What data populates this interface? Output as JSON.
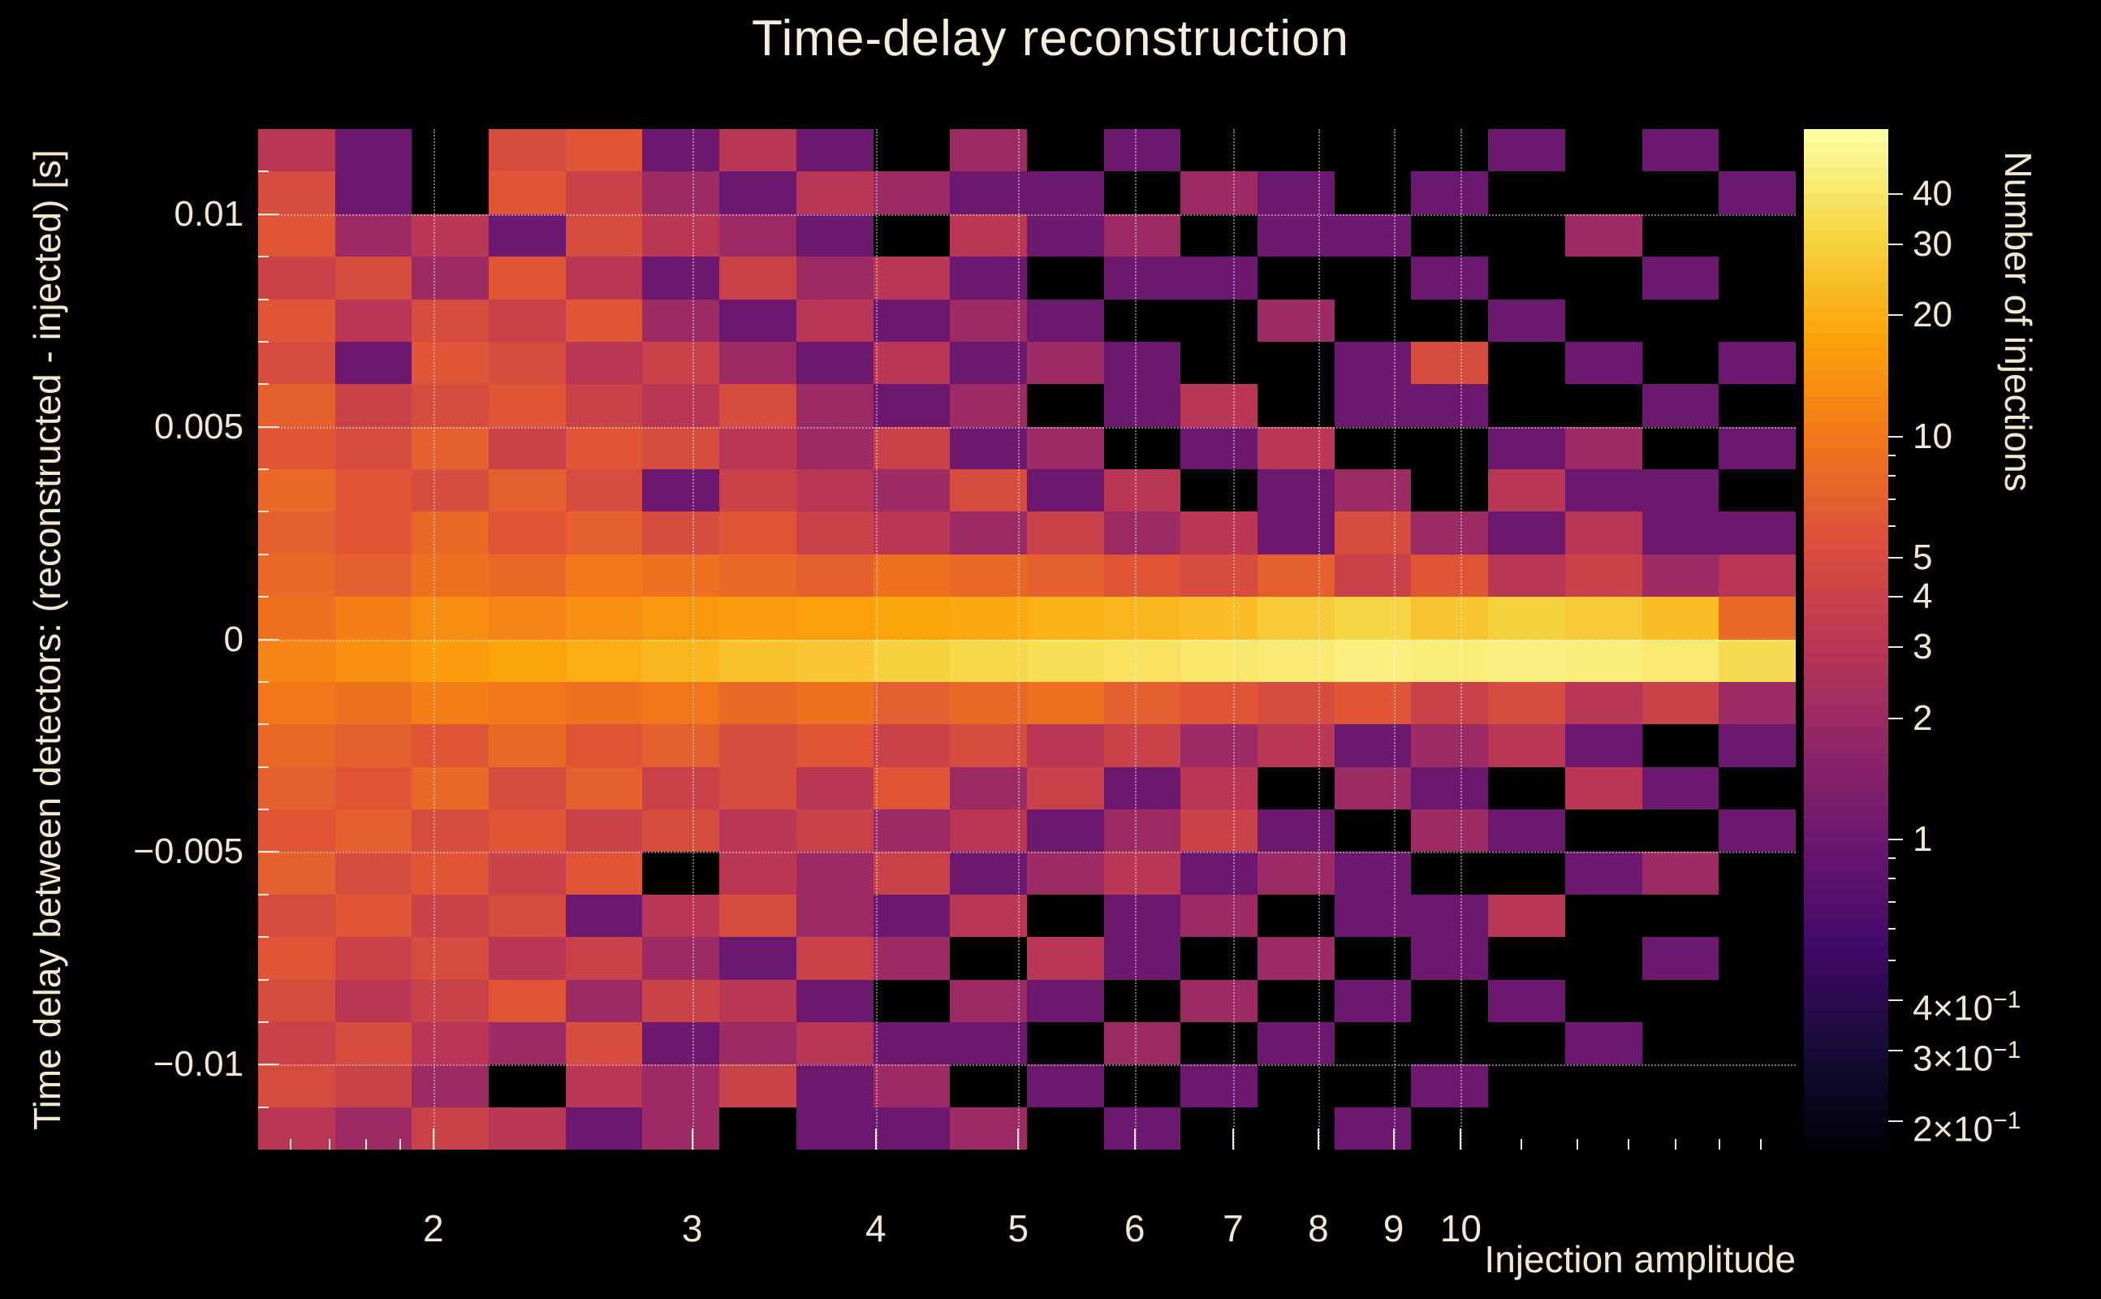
{
  "title": "Time-delay reconstruction",
  "chart_data": {
    "type": "heatmap",
    "title": "Time-delay reconstruction",
    "xlabel": "Injection amplitude",
    "ylabel": "Time delay between detectors: (reconstructed - injected) [s]",
    "colorbar_label": "Number of injections",
    "x_scale": "log",
    "x_range": [
      1.52,
      16.9
    ],
    "x_major_ticks": [
      2,
      3,
      4,
      5,
      6,
      7,
      8,
      9,
      10
    ],
    "x_minor_ticks": [
      1.6,
      1.7,
      1.8,
      1.9,
      11,
      12,
      13,
      14,
      15,
      16
    ],
    "y_scale": "linear",
    "y_range": [
      -0.012,
      0.012
    ],
    "y_major_ticks": [
      {
        "value": 0.01,
        "label": "0.01"
      },
      {
        "value": 0.005,
        "label": "0.005"
      },
      {
        "value": 0,
        "label": "0"
      },
      {
        "value": -0.005,
        "label": "−0.005"
      },
      {
        "value": -0.01,
        "label": "−0.01"
      }
    ],
    "y_minor_ticks": [
      0.011,
      0.009,
      0.008,
      0.007,
      0.006,
      0.004,
      0.003,
      0.002,
      0.001,
      -0.001,
      -0.002,
      -0.003,
      -0.004,
      -0.006,
      -0.007,
      -0.008,
      -0.009,
      -0.011
    ],
    "z_scale": "log",
    "z_range": [
      0.17,
      58
    ],
    "colormap": "inferno",
    "colors": {
      "background": "#000000",
      "text": "#f2e8d0",
      "grid": "rgba(255,255,255,0.45)"
    },
    "colorbar_major_ticks": [
      {
        "value": 40,
        "label": "40"
      },
      {
        "value": 30,
        "label": "30"
      },
      {
        "value": 20,
        "label": "20"
      },
      {
        "value": 10,
        "label": "10"
      },
      {
        "value": 5,
        "label": "5"
      },
      {
        "value": 4,
        "label": "4"
      },
      {
        "value": 3,
        "label": "3"
      },
      {
        "value": 2,
        "label": "2"
      },
      {
        "value": 1,
        "label": "1"
      },
      {
        "value": 0.4,
        "label": "4×10",
        "exp": "−1"
      },
      {
        "value": 0.3,
        "label": "3×10",
        "exp": "−1"
      },
      {
        "value": 0.2,
        "label": "2×10",
        "exp": "−1"
      }
    ],
    "colorbar_minor_ticks": [
      0.5,
      0.6,
      0.7,
      0.8,
      0.9,
      6,
      7,
      8,
      9
    ],
    "n_cols": 20,
    "n_rows": 24,
    "matrix": [
      [
        3,
        1,
        0,
        5,
        6,
        1,
        3,
        1,
        0,
        2,
        0,
        1,
        0,
        0,
        0,
        0,
        1,
        0,
        1,
        0
      ],
      [
        5,
        1,
        0,
        6,
        4,
        2,
        1,
        3,
        2,
        1,
        1,
        0,
        2,
        1,
        0,
        1,
        0,
        0,
        0,
        1
      ],
      [
        6,
        2,
        3,
        1,
        5,
        3,
        2,
        1,
        0,
        3,
        1,
        2,
        0,
        1,
        1,
        0,
        0,
        2,
        0,
        0
      ],
      [
        4,
        5,
        2,
        6,
        3,
        1,
        4,
        2,
        3,
        1,
        0,
        1,
        1,
        0,
        0,
        1,
        0,
        0,
        1,
        0
      ],
      [
        6,
        3,
        5,
        4,
        6,
        2,
        1,
        3,
        1,
        2,
        1,
        0,
        0,
        2,
        0,
        0,
        1,
        0,
        0,
        0
      ],
      [
        5,
        1,
        6,
        5,
        3,
        4,
        2,
        1,
        3,
        1,
        2,
        1,
        0,
        0,
        1,
        5,
        0,
        1,
        0,
        1
      ],
      [
        7,
        4,
        5,
        6,
        4,
        3,
        5,
        2,
        1,
        2,
        0,
        1,
        3,
        0,
        1,
        1,
        0,
        0,
        1,
        0
      ],
      [
        6,
        5,
        7,
        4,
        6,
        5,
        3,
        2,
        4,
        1,
        2,
        0,
        1,
        3,
        0,
        0,
        1,
        2,
        0,
        1
      ],
      [
        8,
        6,
        5,
        7,
        5,
        1,
        4,
        3,
        2,
        5,
        1,
        3,
        0,
        1,
        2,
        0,
        3,
        1,
        1,
        0
      ],
      [
        7,
        6,
        8,
        6,
        7,
        5,
        6,
        4,
        3,
        2,
        4,
        2,
        3,
        1,
        5,
        2,
        1,
        3,
        1,
        1
      ],
      [
        8,
        7,
        9,
        8,
        10,
        9,
        8,
        7,
        9,
        8,
        7,
        6,
        5,
        7,
        4,
        6,
        3,
        4,
        2,
        3
      ],
      [
        9,
        11,
        13,
        12,
        14,
        15,
        16,
        17,
        18,
        19,
        21,
        22,
        24,
        28,
        32,
        26,
        30,
        28,
        24,
        8
      ],
      [
        12,
        14,
        16,
        18,
        20,
        22,
        25,
        27,
        30,
        33,
        36,
        38,
        41,
        43,
        46,
        44,
        47,
        45,
        42,
        35
      ],
      [
        10,
        9,
        11,
        10,
        9,
        10,
        8,
        9,
        7,
        8,
        9,
        7,
        6,
        5,
        6,
        4,
        5,
        3,
        4,
        2
      ],
      [
        8,
        7,
        6,
        8,
        6,
        7,
        5,
        6,
        4,
        5,
        3,
        4,
        2,
        3,
        1,
        2,
        3,
        1,
        0,
        1
      ],
      [
        7,
        6,
        8,
        5,
        7,
        4,
        5,
        3,
        6,
        2,
        4,
        1,
        3,
        0,
        2,
        1,
        0,
        3,
        1,
        0
      ],
      [
        6,
        7,
        5,
        6,
        4,
        5,
        3,
        4,
        2,
        3,
        1,
        2,
        4,
        1,
        0,
        2,
        1,
        0,
        0,
        1
      ],
      [
        7,
        5,
        6,
        4,
        6,
        0,
        3,
        2,
        4,
        1,
        2,
        3,
        1,
        2,
        1,
        0,
        0,
        1,
        2,
        0
      ],
      [
        5,
        6,
        4,
        5,
        1,
        3,
        5,
        2,
        1,
        3,
        0,
        1,
        2,
        0,
        1,
        1,
        3,
        0,
        0,
        0
      ],
      [
        6,
        4,
        5,
        3,
        4,
        2,
        1,
        4,
        2,
        0,
        3,
        1,
        0,
        2,
        0,
        1,
        0,
        0,
        1,
        0
      ],
      [
        5,
        3,
        4,
        6,
        2,
        4,
        3,
        1,
        0,
        2,
        1,
        0,
        2,
        0,
        1,
        0,
        1,
        0,
        0,
        0
      ],
      [
        4,
        5,
        3,
        2,
        5,
        1,
        2,
        3,
        1,
        1,
        0,
        2,
        0,
        1,
        0,
        0,
        0,
        1,
        0,
        0
      ],
      [
        5,
        4,
        2,
        0,
        3,
        2,
        4,
        1,
        2,
        0,
        1,
        0,
        1,
        0,
        0,
        1,
        0,
        0,
        0,
        0
      ],
      [
        3,
        2,
        4,
        3,
        1,
        2,
        0,
        1,
        1,
        2,
        0,
        1,
        0,
        0,
        1,
        0,
        0,
        0,
        0,
        0
      ]
    ]
  }
}
